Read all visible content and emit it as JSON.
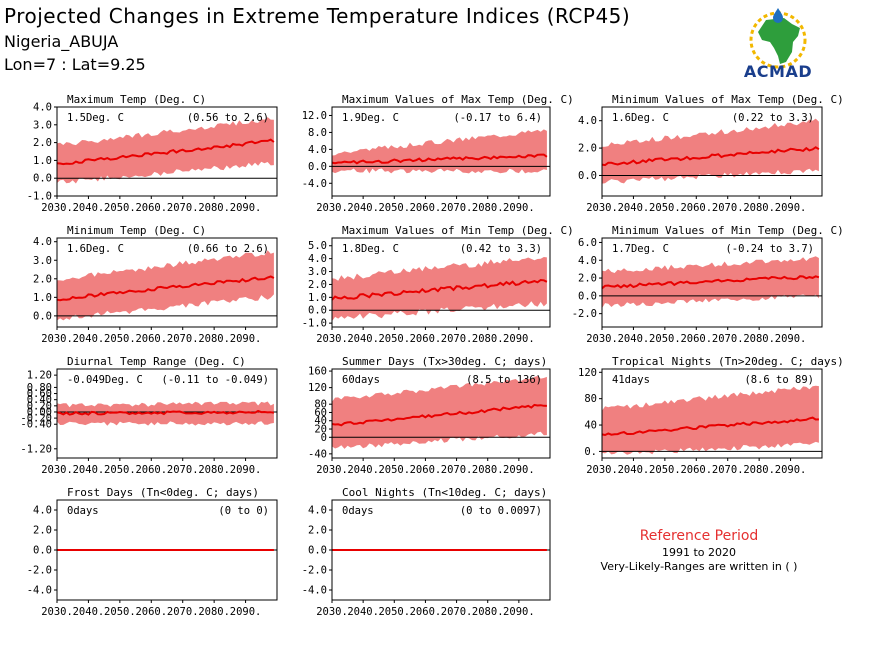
{
  "header": {
    "title": "Projected Changes in Extreme Temperature Indices (RCP45)",
    "location": "Nigeria_ABUJA",
    "coords": "Lon=7 : Lat=9.25"
  },
  "logo": {
    "text": "ACMAD",
    "icon": "africa-map-logo"
  },
  "reference": {
    "title": "Reference Period",
    "years": "1991 to 2020",
    "note": "Very-Likely-Ranges are written in ( )"
  },
  "colors": {
    "band": "#f08080",
    "line": "#e80000",
    "zero": "#000000"
  },
  "chart_data": [
    {
      "type": "area",
      "title": "Maximum Temp (Deg. C)",
      "value_text": "1.5Deg. C",
      "range_text": "(0.56 to 2.6)",
      "x": [
        2030,
        2099
      ],
      "x_ticks": [
        "2030.",
        "2040.",
        "2050.",
        "2060.",
        "2070.",
        "2080.",
        "2090."
      ],
      "ylim": [
        -1.0,
        4.0
      ],
      "y_ticks": [
        "-1.0",
        "0.0",
        "1.0",
        "2.0",
        "3.0",
        "4.0"
      ],
      "median_start": 0.8,
      "median_end": 2.1,
      "band_low_start": -0.1,
      "band_low_end": 1.0,
      "band_high_start": 1.7,
      "band_high_end": 3.2,
      "noise": 0.3
    },
    {
      "type": "area",
      "title": "Maximum Values of Max Temp (Deg. C)",
      "value_text": "1.9Deg. C",
      "range_text": "(-0.17 to 6.4)",
      "x": [
        2030,
        2099
      ],
      "x_ticks": [
        "2030.",
        "2040.",
        "2050.",
        "2060.",
        "2070.",
        "2080.",
        "2090."
      ],
      "ylim": [
        -7,
        14
      ],
      "y_ticks": [
        "-4.0",
        "0.0",
        "4.0",
        "8.0",
        "12.0"
      ],
      "median_start": 0.8,
      "median_end": 2.5,
      "band_low_start": -0.5,
      "band_low_end": -0.5,
      "band_high_start": 2.5,
      "band_high_end": 8.0,
      "noise": 1.2
    },
    {
      "type": "area",
      "title": "Minimum Values of Max Temp (Deg. C)",
      "value_text": "1.6Deg. C",
      "range_text": "(0.22 to 3.3)",
      "x": [
        2030,
        2099
      ],
      "x_ticks": [
        "2030.",
        "2040.",
        "2050.",
        "2060.",
        "2070.",
        "2080.",
        "2090."
      ],
      "ylim": [
        -1.5,
        5.0
      ],
      "y_ticks": [
        "0.0",
        "2.0",
        "4.0"
      ],
      "median_start": 0.8,
      "median_end": 2.0,
      "band_low_start": -0.3,
      "band_low_end": 0.6,
      "band_high_start": 2.0,
      "band_high_end": 3.8,
      "noise": 0.4
    },
    {
      "type": "area",
      "title": "Minimum Temp (Deg. C)",
      "value_text": "1.6Deg. C",
      "range_text": "(0.66 to 2.6)",
      "x": [
        2030,
        2099
      ],
      "x_ticks": [
        "2030.",
        "2040.",
        "2050.",
        "2060.",
        "2070.",
        "2080.",
        "2090."
      ],
      "ylim": [
        -0.6,
        4.2
      ],
      "y_ticks": [
        "0.0",
        "1.0",
        "2.0",
        "3.0",
        "4.0"
      ],
      "median_start": 0.9,
      "median_end": 2.1,
      "band_low_start": 0.0,
      "band_low_end": 1.2,
      "band_high_start": 1.8,
      "band_high_end": 3.3,
      "noise": 0.3
    },
    {
      "type": "area",
      "title": "Maximum Values of Min Temp (Deg. C)",
      "value_text": "1.8Deg. C",
      "range_text": "(0.42 to 3.3)",
      "x": [
        2030,
        2099
      ],
      "x_ticks": [
        "2030.",
        "2040.",
        "2050.",
        "2060.",
        "2070.",
        "2080.",
        "2090."
      ],
      "ylim": [
        -1.3,
        5.6
      ],
      "y_ticks": [
        "-1.0",
        "0.0",
        "1.0",
        "2.0",
        "3.0",
        "4.0",
        "5.0"
      ],
      "median_start": 0.9,
      "median_end": 2.3,
      "band_low_start": -0.4,
      "band_low_end": 0.8,
      "band_high_start": 2.2,
      "band_high_end": 3.9,
      "noise": 0.5
    },
    {
      "type": "area",
      "title": "Minimum Values of Min Temp (Deg. C)",
      "value_text": "1.7Deg. C",
      "range_text": "(-0.24 to 3.7)",
      "x": [
        2030,
        2099
      ],
      "x_ticks": [
        "2030.",
        "2040.",
        "2050.",
        "2060.",
        "2070.",
        "2080.",
        "2090."
      ],
      "ylim": [
        -3.5,
        6.5
      ],
      "y_ticks": [
        "-2.0",
        "0.0",
        "2.0",
        "4.0",
        "6.0"
      ],
      "median_start": 1.0,
      "median_end": 2.2,
      "band_low_start": -0.8,
      "band_low_end": 0.3,
      "band_high_start": 2.4,
      "band_high_end": 4.0,
      "noise": 0.6
    },
    {
      "type": "area",
      "title": "Diurnal Temp Range (Deg. C)",
      "value_text": "-0.049Deg. C",
      "range_text": "(-0.11 to -0.049)",
      "x": [
        2030,
        2099
      ],
      "x_ticks": [
        "2030.",
        "2040.",
        "2050.",
        "2060.",
        "2070.",
        "2080.",
        "2090."
      ],
      "ylim": [
        -1.5,
        1.4
      ],
      "y_ticks": [
        "-1.20",
        "-0.40",
        "-0.20",
        "0.00",
        "0.20",
        "0.40",
        "0.60",
        "0.80",
        "1.20"
      ],
      "median_start": -0.05,
      "median_end": 0.0,
      "band_low_start": -0.3,
      "band_low_end": -0.3,
      "band_high_start": 0.15,
      "band_high_end": 0.2,
      "noise": 0.15
    },
    {
      "type": "area",
      "title": "Summer Days (Tx>30deg. C; days)",
      "value_text": "60days",
      "range_text": "(8.5 to 136)",
      "x": [
        2030,
        2099
      ],
      "x_ticks": [
        "2030.",
        "2040.",
        "2050.",
        "2060.",
        "2070.",
        "2080.",
        "2090."
      ],
      "ylim": [
        -50,
        165
      ],
      "y_ticks": [
        "-40",
        "0",
        "20",
        "40",
        "60",
        "80",
        "120",
        "160"
      ],
      "median_start": 30,
      "median_end": 78,
      "band_low_start": -20,
      "band_low_end": 15,
      "band_high_start": 85,
      "band_high_end": 140,
      "noise": 12
    },
    {
      "type": "area",
      "title": "Tropical Nights (Tn>20deg. C; days)",
      "value_text": "41days",
      "range_text": "(8.6 to 89)",
      "x": [
        2030,
        2099
      ],
      "x_ticks": [
        "2030.",
        "2040.",
        "2050.",
        "2060.",
        "2070.",
        "2080.",
        "2090."
      ],
      "ylim": [
        -10,
        125
      ],
      "y_ticks": [
        "0.",
        "40",
        "80",
        "120"
      ],
      "median_start": 25,
      "median_end": 50,
      "band_low_start": 0,
      "band_low_end": 15,
      "band_high_start": 60,
      "band_high_end": 95,
      "noise": 8
    },
    {
      "type": "area",
      "title": "Frost Days (Tn<0deg. C; days)",
      "value_text": "0days",
      "range_text": "(0 to 0)",
      "x": [
        2030,
        2099
      ],
      "x_ticks": [
        "2030.",
        "2040.",
        "2050.",
        "2060.",
        "2070.",
        "2080.",
        "2090."
      ],
      "ylim": [
        -5.0,
        5.0
      ],
      "y_ticks": [
        "-4.0",
        "-2.0",
        "0.0",
        "2.0",
        "4.0"
      ],
      "median_start": 0,
      "median_end": 0,
      "band_low_start": 0,
      "band_low_end": 0,
      "band_high_start": 0,
      "band_high_end": 0,
      "noise": 0
    },
    {
      "type": "area",
      "title": "Cool Nights (Tn<10deg. C; days)",
      "value_text": "0days",
      "range_text": "(0 to 0.0097)",
      "x": [
        2030,
        2099
      ],
      "x_ticks": [
        "2030.",
        "2040.",
        "2050.",
        "2060.",
        "2070.",
        "2080.",
        "2090."
      ],
      "ylim": [
        -5.0,
        5.0
      ],
      "y_ticks": [
        "-4.0",
        "-2.0",
        "0.0",
        "2.0",
        "4.0"
      ],
      "median_start": 0,
      "median_end": 0,
      "band_low_start": 0,
      "band_low_end": 0,
      "band_high_start": 0,
      "band_high_end": 0.05,
      "noise": 0
    }
  ]
}
